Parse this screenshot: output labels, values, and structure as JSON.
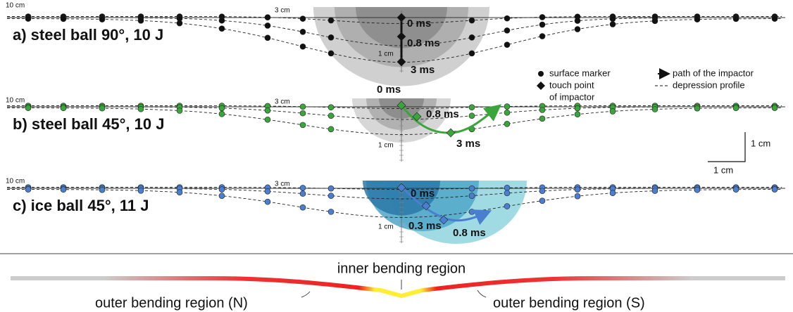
{
  "panels": [
    {
      "title": "a) steel ball 90°, 10 J",
      "axis_labels": [
        "10 cm",
        "3 cm",
        "1 cm"
      ],
      "times": [
        "0 ms",
        "0.8 ms",
        "3 ms"
      ]
    },
    {
      "title": "b) steel ball 45°, 10 J",
      "axis_labels": [
        "10 cm",
        "3 cm",
        "1 cm"
      ],
      "times": [
        "0 ms",
        "0.8 ms",
        "3 ms"
      ]
    },
    {
      "title": "c) ice ball 45°, 11 J",
      "axis_labels": [
        "10 cm",
        "3 cm",
        "1 cm"
      ],
      "times": [
        "0 ms",
        "0.3 ms",
        "0.8 ms"
      ]
    }
  ],
  "legend": {
    "surface_marker": "surface marker",
    "touch_point": [
      "touch point",
      "of impactor"
    ],
    "path": "path of the impactor",
    "profile": "depression profile"
  },
  "scale_bar": {
    "vertical": "1 cm",
    "horizontal": "1 cm"
  },
  "bending": {
    "inner": "inner bending region",
    "outer_n": "outer bending region (N)",
    "outer_s": "outer bending region (S)"
  }
}
